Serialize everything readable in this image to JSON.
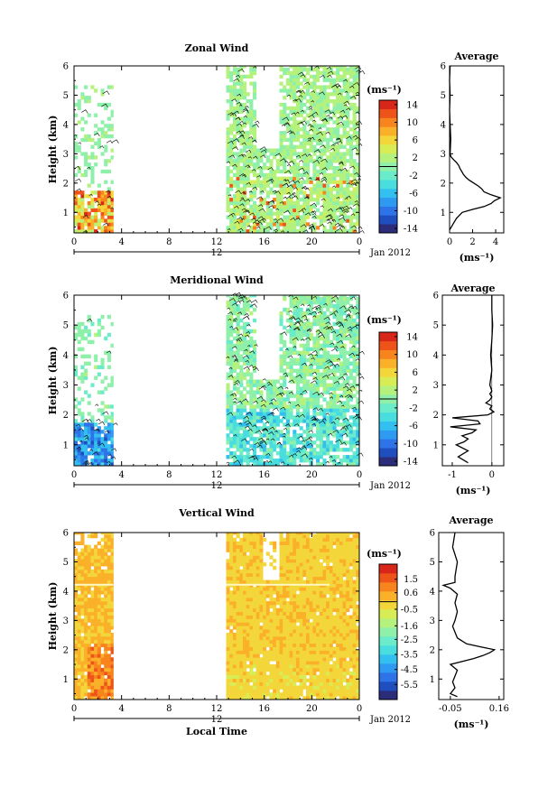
{
  "chart_data": [
    {
      "type": "heatmap",
      "title": "Zonal Wind",
      "ylabel": "Height (km)",
      "ylim": [
        0.3,
        6
      ],
      "yticks": [
        "1",
        "2",
        "3",
        "4",
        "5",
        "6"
      ],
      "xticks": [
        "0",
        "4",
        "8",
        "12",
        "16",
        "20",
        "0"
      ],
      "xlim": [
        0,
        24
      ],
      "date_day": "12",
      "date_label": "Jan 2012",
      "units": "(ms⁻¹)",
      "colorbar": {
        "range": [
          -15,
          15
        ],
        "ticks": [
          "14",
          "10",
          "6",
          "2",
          "-2",
          "-6",
          "-10",
          "-14"
        ]
      },
      "observation_windows": [
        [
          0,
          3.3
        ],
        [
          12.8,
          24
        ]
      ],
      "colors": [
        "#2b2c7a",
        "#1f4fbe",
        "#2e73e8",
        "#2f9af2",
        "#33bff0",
        "#49dde0",
        "#6aebc9",
        "#8ff0a9",
        "#b4f27d",
        "#d8ec55",
        "#f3d73a",
        "#fbb02a",
        "#f8841e",
        "#ee541a",
        "#d8271a"
      ],
      "average": {
        "title": "Average",
        "xlabel": "(ms⁻¹)",
        "xticks": [
          "0",
          "2",
          "4"
        ],
        "xlim": [
          0,
          4.7
        ],
        "height_km": [
          0.4,
          0.6,
          0.8,
          1.0,
          1.1,
          1.2,
          1.3,
          1.4,
          1.5,
          1.6,
          1.7,
          1.8,
          1.9,
          2.0,
          2.1,
          2.2,
          2.3,
          2.4,
          2.5,
          2.6,
          2.7,
          2.8,
          2.9,
          3.0,
          3.5,
          4.0,
          4.5,
          5.0,
          5.5,
          6.0
        ],
        "values": [
          0.0,
          0.3,
          0.6,
          1.1,
          2.0,
          3.0,
          3.6,
          3.9,
          4.4,
          3.6,
          3.0,
          2.8,
          2.5,
          2.1,
          1.7,
          1.4,
          1.2,
          1.05,
          0.9,
          0.8,
          0.6,
          0.35,
          0.12,
          0.05,
          0.1,
          0.05,
          0.0,
          0.05,
          0.0,
          0.05
        ]
      }
    },
    {
      "type": "heatmap",
      "title": "Meridional Wind",
      "ylabel": "Height (km)",
      "ylim": [
        0.3,
        6
      ],
      "yticks": [
        "1",
        "2",
        "3",
        "4",
        "5",
        "6"
      ],
      "xticks": [
        "0",
        "4",
        "8",
        "12",
        "16",
        "20",
        "0"
      ],
      "xlim": [
        0,
        24
      ],
      "date_day": "12",
      "date_label": "Jan 2012",
      "units": "(ms⁻¹)",
      "colorbar": {
        "range": [
          -15,
          15
        ],
        "ticks": [
          "14",
          "10",
          "6",
          "2",
          "-2",
          "-6",
          "-10",
          "-14"
        ]
      },
      "observation_windows": [
        [
          0,
          3.3
        ],
        [
          12.8,
          24
        ]
      ],
      "colors": [
        "#2b2c7a",
        "#1f4fbe",
        "#2e73e8",
        "#2f9af2",
        "#33bff0",
        "#49dde0",
        "#6aebc9",
        "#8ff0a9",
        "#b4f27d",
        "#d8ec55",
        "#f3d73a",
        "#fbb02a",
        "#f8841e",
        "#ee541a",
        "#d8271a"
      ],
      "average": {
        "title": "Average",
        "xlabel": "(ms⁻¹)",
        "xticks": [
          "-1",
          "0"
        ],
        "xlim": [
          -1.25,
          0.3
        ],
        "height_km": [
          0.4,
          0.6,
          0.8,
          1.0,
          1.1,
          1.2,
          1.3,
          1.4,
          1.5,
          1.6,
          1.7,
          1.8,
          1.9,
          2.0,
          2.1,
          2.2,
          2.3,
          2.4,
          2.5,
          2.6,
          2.7,
          2.8,
          3.0,
          3.5,
          4.0,
          4.5,
          5.0,
          5.5,
          6.0
        ],
        "values": [
          -0.6,
          -0.85,
          -0.6,
          -0.9,
          -0.7,
          -0.6,
          -0.75,
          -0.5,
          -0.4,
          -1.05,
          -0.3,
          -0.35,
          -1.0,
          -0.1,
          0.05,
          -0.05,
          0.0,
          -0.15,
          -0.05,
          0.0,
          -0.05,
          0.0,
          -0.05,
          0.0,
          -0.03,
          0.0,
          0.02,
          0.0,
          0.0
        ]
      }
    },
    {
      "type": "heatmap",
      "title": "Vertical Wind",
      "ylabel": "Height (km)",
      "xlabel": "Local Time",
      "ylim": [
        0.3,
        6
      ],
      "yticks": [
        "1",
        "2",
        "3",
        "4",
        "5",
        "6"
      ],
      "xticks": [
        "0",
        "4",
        "8",
        "12",
        "16",
        "20",
        "0"
      ],
      "xlim": [
        0,
        24
      ],
      "date_day": "12",
      "date_label": "Jan 2012",
      "units": "(ms⁻¹)",
      "colorbar": {
        "range": [
          -6.5,
          2.5
        ],
        "ticks": [
          "1.5",
          "0.6",
          "-0.5",
          "-1.6",
          "-2.5",
          "-3.5",
          "-4.5",
          "-5.5"
        ]
      },
      "observation_windows": [
        [
          0,
          3.3
        ],
        [
          12.8,
          24
        ]
      ],
      "colors": [
        "#2b2c7a",
        "#1f4fbe",
        "#2e73e8",
        "#2f9af2",
        "#33bff0",
        "#49dde0",
        "#6aebc9",
        "#8ff0a9",
        "#b4f27d",
        "#d8ec55",
        "#f3d73a",
        "#fbb02a",
        "#f8841e",
        "#ee541a",
        "#d8271a"
      ],
      "average": {
        "title": "Average",
        "xlabel": "(ms⁻¹)",
        "xticks": [
          "-0.05",
          "0.16"
        ],
        "xlim": [
          -0.1,
          0.18
        ],
        "height_km": [
          0.4,
          0.5,
          0.7,
          0.9,
          1.1,
          1.3,
          1.5,
          1.7,
          1.8,
          1.9,
          2.0,
          2.1,
          2.2,
          2.4,
          2.6,
          2.8,
          3.0,
          3.3,
          3.6,
          3.9,
          4.1,
          4.2,
          4.3,
          4.5,
          5.0,
          5.5,
          6.0
        ],
        "values": [
          -0.02,
          -0.05,
          -0.03,
          -0.04,
          -0.03,
          -0.02,
          -0.05,
          0.05,
          0.09,
          0.12,
          0.14,
          0.08,
          0.02,
          -0.02,
          -0.03,
          -0.04,
          -0.03,
          -0.02,
          -0.03,
          -0.02,
          -0.05,
          -0.08,
          -0.03,
          -0.03,
          -0.02,
          -0.04,
          -0.03
        ]
      }
    }
  ]
}
